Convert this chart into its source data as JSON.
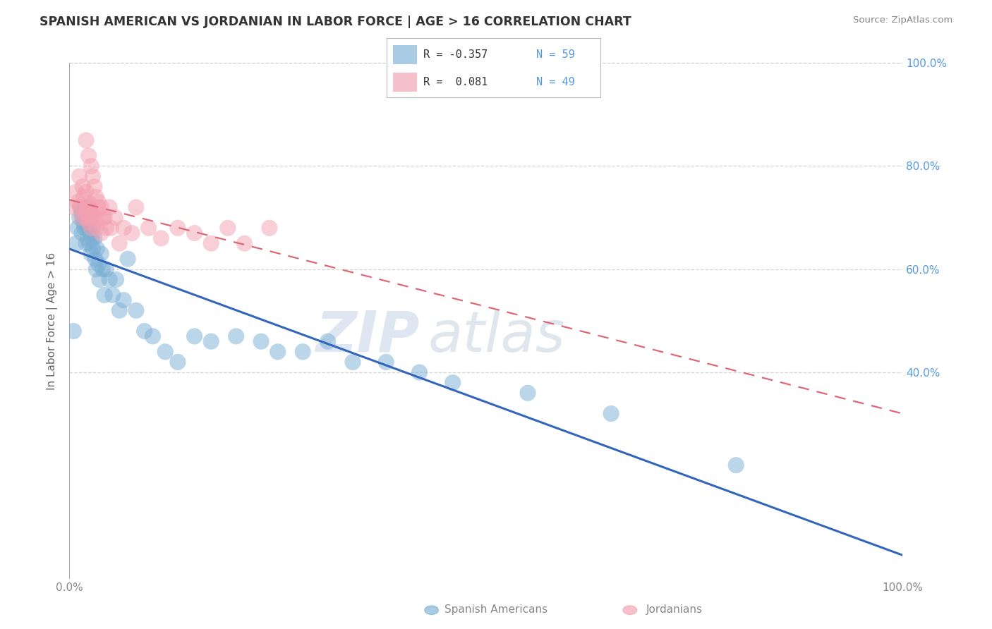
{
  "title": "SPANISH AMERICAN VS JORDANIAN IN LABOR FORCE | AGE > 16 CORRELATION CHART",
  "source": "Source: ZipAtlas.com",
  "ylabel": "In Labor Force | Age > 16",
  "xlim": [
    0.0,
    1.0
  ],
  "ylim": [
    0.0,
    1.0
  ],
  "xtick_pos": [
    0.0,
    1.0
  ],
  "xtick_labels": [
    "0.0%",
    "100.0%"
  ],
  "ytick_pos": [
    0.4,
    0.6,
    0.8,
    1.0
  ],
  "ytick_labels": [
    "40.0%",
    "60.0%",
    "80.0%",
    "100.0%"
  ],
  "spanish_R": -0.357,
  "spanish_N": 59,
  "jordanian_R": 0.081,
  "jordanian_N": 49,
  "spanish_color": "#7BAFD4",
  "jordanian_color": "#F4A0B0",
  "spanish_line_color": "#3366BB",
  "jordanian_line_color": "#DD6677",
  "background_color": "#FFFFFF",
  "grid_color": "#CCCCCC",
  "watermark_zip": "ZIP",
  "watermark_atlas": "atlas",
  "spanish_x": [
    0.005,
    0.008,
    0.01,
    0.012,
    0.013,
    0.015,
    0.015,
    0.016,
    0.017,
    0.018,
    0.019,
    0.02,
    0.02,
    0.021,
    0.022,
    0.022,
    0.023,
    0.024,
    0.025,
    0.025,
    0.026,
    0.027,
    0.028,
    0.028,
    0.03,
    0.031,
    0.032,
    0.033,
    0.035,
    0.036,
    0.038,
    0.04,
    0.042,
    0.044,
    0.048,
    0.052,
    0.056,
    0.06,
    0.065,
    0.07,
    0.08,
    0.09,
    0.1,
    0.115,
    0.13,
    0.15,
    0.17,
    0.2,
    0.23,
    0.25,
    0.28,
    0.31,
    0.34,
    0.38,
    0.42,
    0.46,
    0.55,
    0.65,
    0.8
  ],
  "spanish_y": [
    0.48,
    0.65,
    0.68,
    0.7,
    0.72,
    0.67,
    0.71,
    0.7,
    0.69,
    0.68,
    0.72,
    0.7,
    0.65,
    0.68,
    0.66,
    0.71,
    0.68,
    0.65,
    0.67,
    0.7,
    0.63,
    0.66,
    0.64,
    0.68,
    0.66,
    0.62,
    0.6,
    0.64,
    0.61,
    0.58,
    0.63,
    0.6,
    0.55,
    0.6,
    0.58,
    0.55,
    0.58,
    0.52,
    0.54,
    0.62,
    0.52,
    0.48,
    0.47,
    0.44,
    0.42,
    0.47,
    0.46,
    0.47,
    0.46,
    0.44,
    0.44,
    0.46,
    0.42,
    0.42,
    0.4,
    0.38,
    0.36,
    0.32,
    0.22
  ],
  "jordanian_x": [
    0.005,
    0.008,
    0.01,
    0.012,
    0.013,
    0.015,
    0.016,
    0.017,
    0.018,
    0.019,
    0.02,
    0.021,
    0.022,
    0.023,
    0.024,
    0.025,
    0.026,
    0.028,
    0.03,
    0.032,
    0.034,
    0.036,
    0.038,
    0.04,
    0.044,
    0.048,
    0.055,
    0.065,
    0.08,
    0.095,
    0.11,
    0.13,
    0.15,
    0.17,
    0.19,
    0.21,
    0.24,
    0.02,
    0.023,
    0.026,
    0.028,
    0.03,
    0.032,
    0.035,
    0.038,
    0.042,
    0.05,
    0.06,
    0.075
  ],
  "jordanian_y": [
    0.72,
    0.75,
    0.73,
    0.78,
    0.72,
    0.7,
    0.76,
    0.74,
    0.71,
    0.7,
    0.75,
    0.72,
    0.7,
    0.73,
    0.69,
    0.72,
    0.68,
    0.71,
    0.7,
    0.68,
    0.72,
    0.7,
    0.67,
    0.7,
    0.68,
    0.72,
    0.7,
    0.68,
    0.72,
    0.68,
    0.66,
    0.68,
    0.67,
    0.65,
    0.68,
    0.65,
    0.68,
    0.85,
    0.82,
    0.8,
    0.78,
    0.76,
    0.74,
    0.73,
    0.72,
    0.7,
    0.68,
    0.65,
    0.67
  ]
}
